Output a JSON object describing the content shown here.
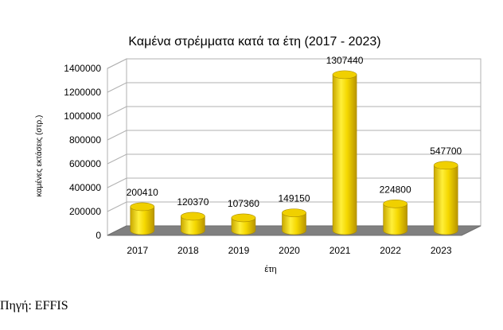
{
  "chart_data": {
    "type": "bar",
    "title": "Καμένα στρέμματα κατά τα έτη (2017 - 2023)",
    "xlabel": "έτη",
    "ylabel": "καμένες εκτάσεις (στρ.)",
    "categories": [
      "2017",
      "2018",
      "2019",
      "2020",
      "2021",
      "2022",
      "2023"
    ],
    "values": [
      200410,
      120370,
      107360,
      149150,
      1307440,
      224800,
      547700
    ],
    "ylim": [
      0,
      1400000
    ],
    "yticks": [
      0,
      200000,
      400000,
      600000,
      800000,
      1000000,
      1200000,
      1400000
    ],
    "grid": true,
    "legend": "none",
    "bar_color": "#f2d600",
    "floor_color": "#808080"
  },
  "source": "Πηγή: EFFIS"
}
